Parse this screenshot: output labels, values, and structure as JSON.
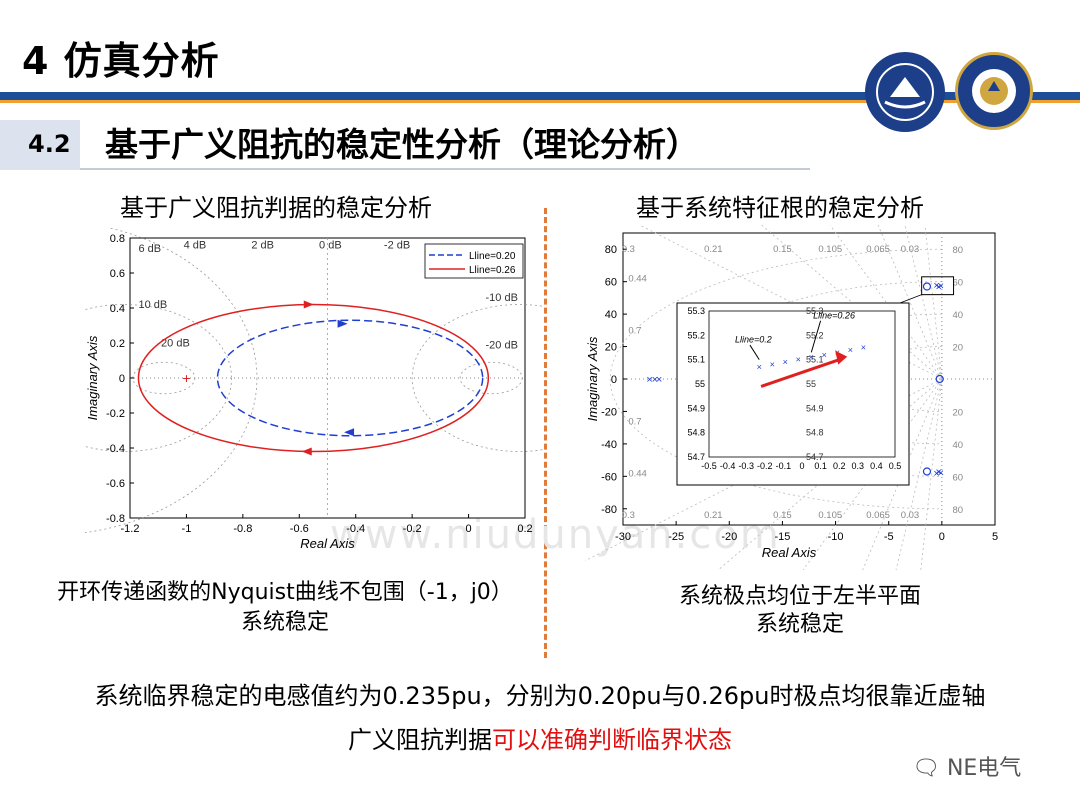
{
  "slide": {
    "title": "4   仿真分析",
    "section_number": "4.2",
    "section_title": "基于广义阻抗的稳定性分析（理论分析）",
    "left_subtitle": "基于广义阻抗判据的稳定分析",
    "right_subtitle": "基于系统特征根的稳定分析",
    "left_caption_line1": "开环传递函数的Nyquist曲线不包围（-1，j0）",
    "left_caption_line2": "系统稳定",
    "right_caption_line1": "系统极点均位于左半平面",
    "right_caption_line2": "系统稳定",
    "conclusion": "系统临界稳定的电感值约为0.235pu，分别为0.20pu与0.26pu时极点均很靠近虚轴",
    "conclusion2_prefix": "广义阻抗判据",
    "conclusion2_highlight": "可以准确判断临界状态",
    "wechat_label": "NE电气",
    "watermark": "www.niudunyan.com",
    "colors": {
      "title_bar": "#1f4e99",
      "accent_orange": "#f0a030",
      "highlight_red": "#e01010"
    }
  },
  "chart_data": [
    {
      "type": "line",
      "name": "nyquist",
      "xlabel": "Real Axis",
      "ylabel": "Imaginary Axis",
      "xlim": [
        -1.2,
        0.2
      ],
      "ylim": [
        -0.8,
        0.8
      ],
      "xticks": [
        -1.2,
        -1,
        -0.8,
        -0.6,
        -0.4,
        -0.2,
        0,
        0.2
      ],
      "yticks": [
        -0.8,
        -0.6,
        -0.4,
        -0.2,
        0,
        0.2,
        0.4,
        0.6,
        0.8
      ],
      "grid_labels": [
        "6 dB",
        "4 dB",
        "2 dB",
        "0 dB",
        "-2 dB",
        "10 dB",
        "20 dB",
        "-10 dB",
        "-20 dB"
      ],
      "critical_point": [
        -1,
        0
      ],
      "legend": "top-right",
      "series": [
        {
          "name": "Lline=0.20",
          "style": "dashed",
          "color": "#1f3fd0",
          "center": [
            -0.42,
            0
          ],
          "rx": 0.47,
          "ry": 0.33,
          "arrows": [
            "-0.45,0.31 right",
            "-0.42,-0.31 left"
          ]
        },
        {
          "name": "Lline=0.26",
          "style": "solid",
          "color": "#e02020",
          "center": [
            -0.55,
            0
          ],
          "rx": 0.62,
          "ry": 0.42,
          "arrows": [
            "-0.57,0.42 right",
            "-0.57,-0.42 left"
          ]
        }
      ]
    },
    {
      "type": "scatter",
      "name": "pole-zero map",
      "xlabel": "Real Axis",
      "ylabel": "Imaginary Axis",
      "xlim": [
        -30,
        5
      ],
      "ylim": [
        -90,
        90
      ],
      "xticks": [
        -30,
        -25,
        -20,
        -15,
        -10,
        -5,
        0,
        5
      ],
      "yticks": [
        -80,
        -60,
        -40,
        -20,
        0,
        20,
        40,
        60,
        80
      ],
      "damping_labels": [
        "0.3",
        "0.21",
        "0.15",
        "0.105",
        "0.065",
        "0.03"
      ],
      "frequency_labels": [
        "80",
        "60",
        "40",
        "20"
      ],
      "grid_side_labels": [
        "0.44",
        "0.7",
        "0.7",
        "0.44"
      ],
      "poles": [
        [
          -0.3,
          57
        ],
        [
          -0.5,
          58
        ],
        [
          -0.1,
          57.5
        ],
        [
          -0.3,
          -57
        ],
        [
          -0.5,
          -58
        ],
        [
          -0.1,
          -57.5
        ],
        [
          -27,
          0
        ],
        [
          -27.5,
          0
        ],
        [
          -26.6,
          0
        ]
      ],
      "zeros": [
        [
          -1.4,
          57
        ],
        [
          -1.4,
          -57
        ],
        [
          -0.2,
          0
        ]
      ],
      "inset": {
        "xlim": [
          -0.5,
          0.5
        ],
        "ylim": [
          54.7,
          55.3
        ],
        "xticks": [
          -0.5,
          -0.4,
          -0.3,
          -0.2,
          -0.1,
          0,
          0.1,
          0.2,
          0.3,
          0.4,
          0.5
        ],
        "yticks": [
          54.7,
          54.8,
          54.9,
          55,
          55.1,
          55.2,
          55.3
        ],
        "label_020": "Lline=0.2",
        "label_026": "Lline=0.26",
        "points": [
          [
            -0.23,
            55.07
          ],
          [
            -0.16,
            55.08
          ],
          [
            -0.09,
            55.09
          ],
          [
            -0.02,
            55.1
          ],
          [
            0.05,
            55.11
          ],
          [
            0.12,
            55.12
          ],
          [
            0.19,
            55.13
          ],
          [
            0.26,
            55.14
          ],
          [
            0.33,
            55.15
          ]
        ],
        "arrow_from": [
          -0.22,
          54.99
        ],
        "arrow_to": [
          0.2,
          55.1
        ]
      }
    }
  ]
}
